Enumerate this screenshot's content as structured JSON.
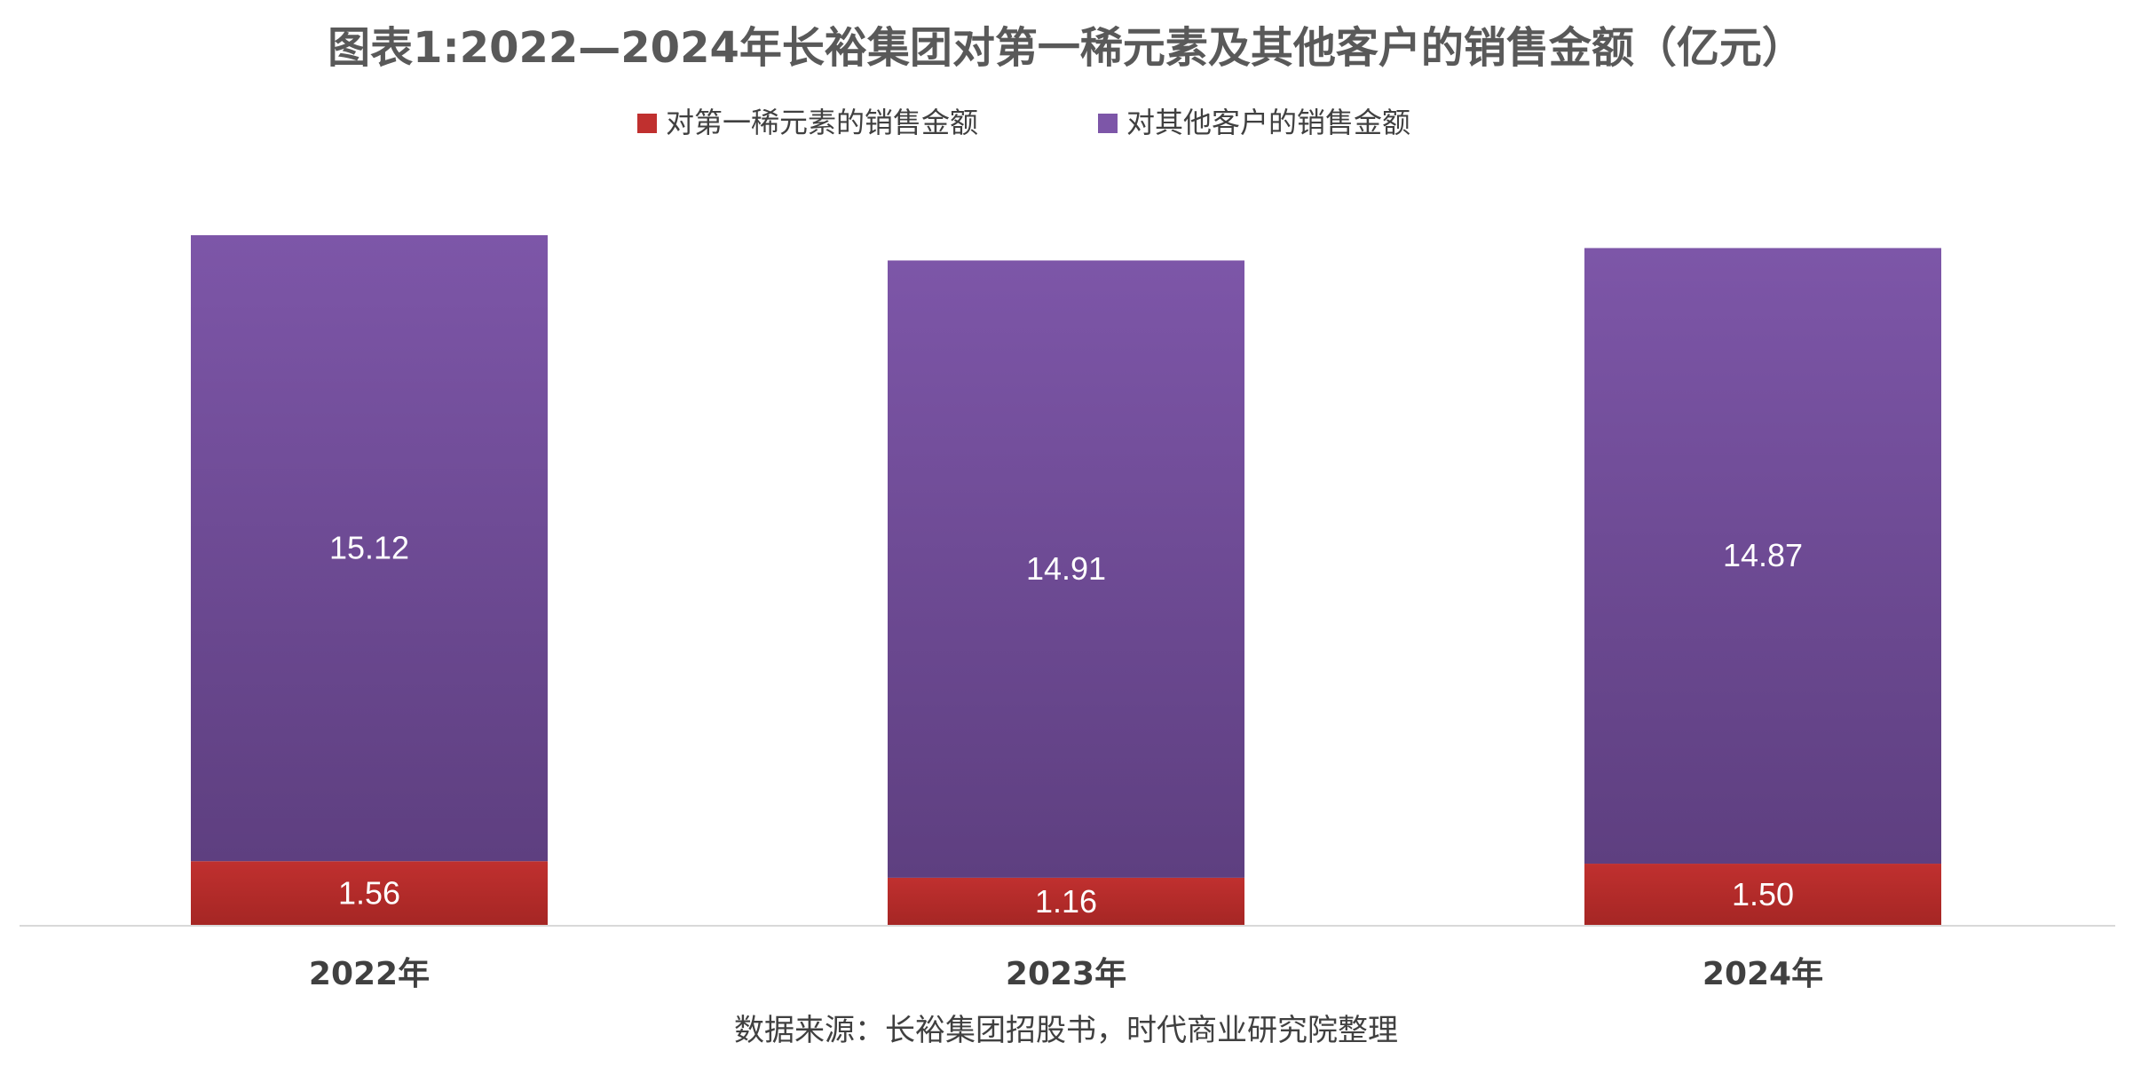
{
  "chart_data": {
    "type": "bar",
    "stacked": true,
    "title": "图表1:2022—2024年长裕集团对第一稀元素及其他客户的销售金额（亿元）",
    "categories": [
      "2022年",
      "2023年",
      "2024年"
    ],
    "series": [
      {
        "name": "对第一稀元素的销售金额",
        "values": [
          1.56,
          1.16,
          1.5
        ],
        "labels": [
          "1.56",
          "1.16",
          "1.50"
        ],
        "color": "#c0302f",
        "color_dark": "#a52624"
      },
      {
        "name": "对其他客户的销售金额",
        "values": [
          15.12,
          14.91,
          14.87
        ],
        "labels": [
          "15.12",
          "14.91",
          "14.87"
        ],
        "color": "#7d56a8",
        "color_dark": "#5e3f80"
      }
    ],
    "legend": "top",
    "grid": false,
    "ylim": [
      0,
      16.68
    ],
    "source": "数据来源：长裕集团招股书，时代商业研究院整理"
  }
}
